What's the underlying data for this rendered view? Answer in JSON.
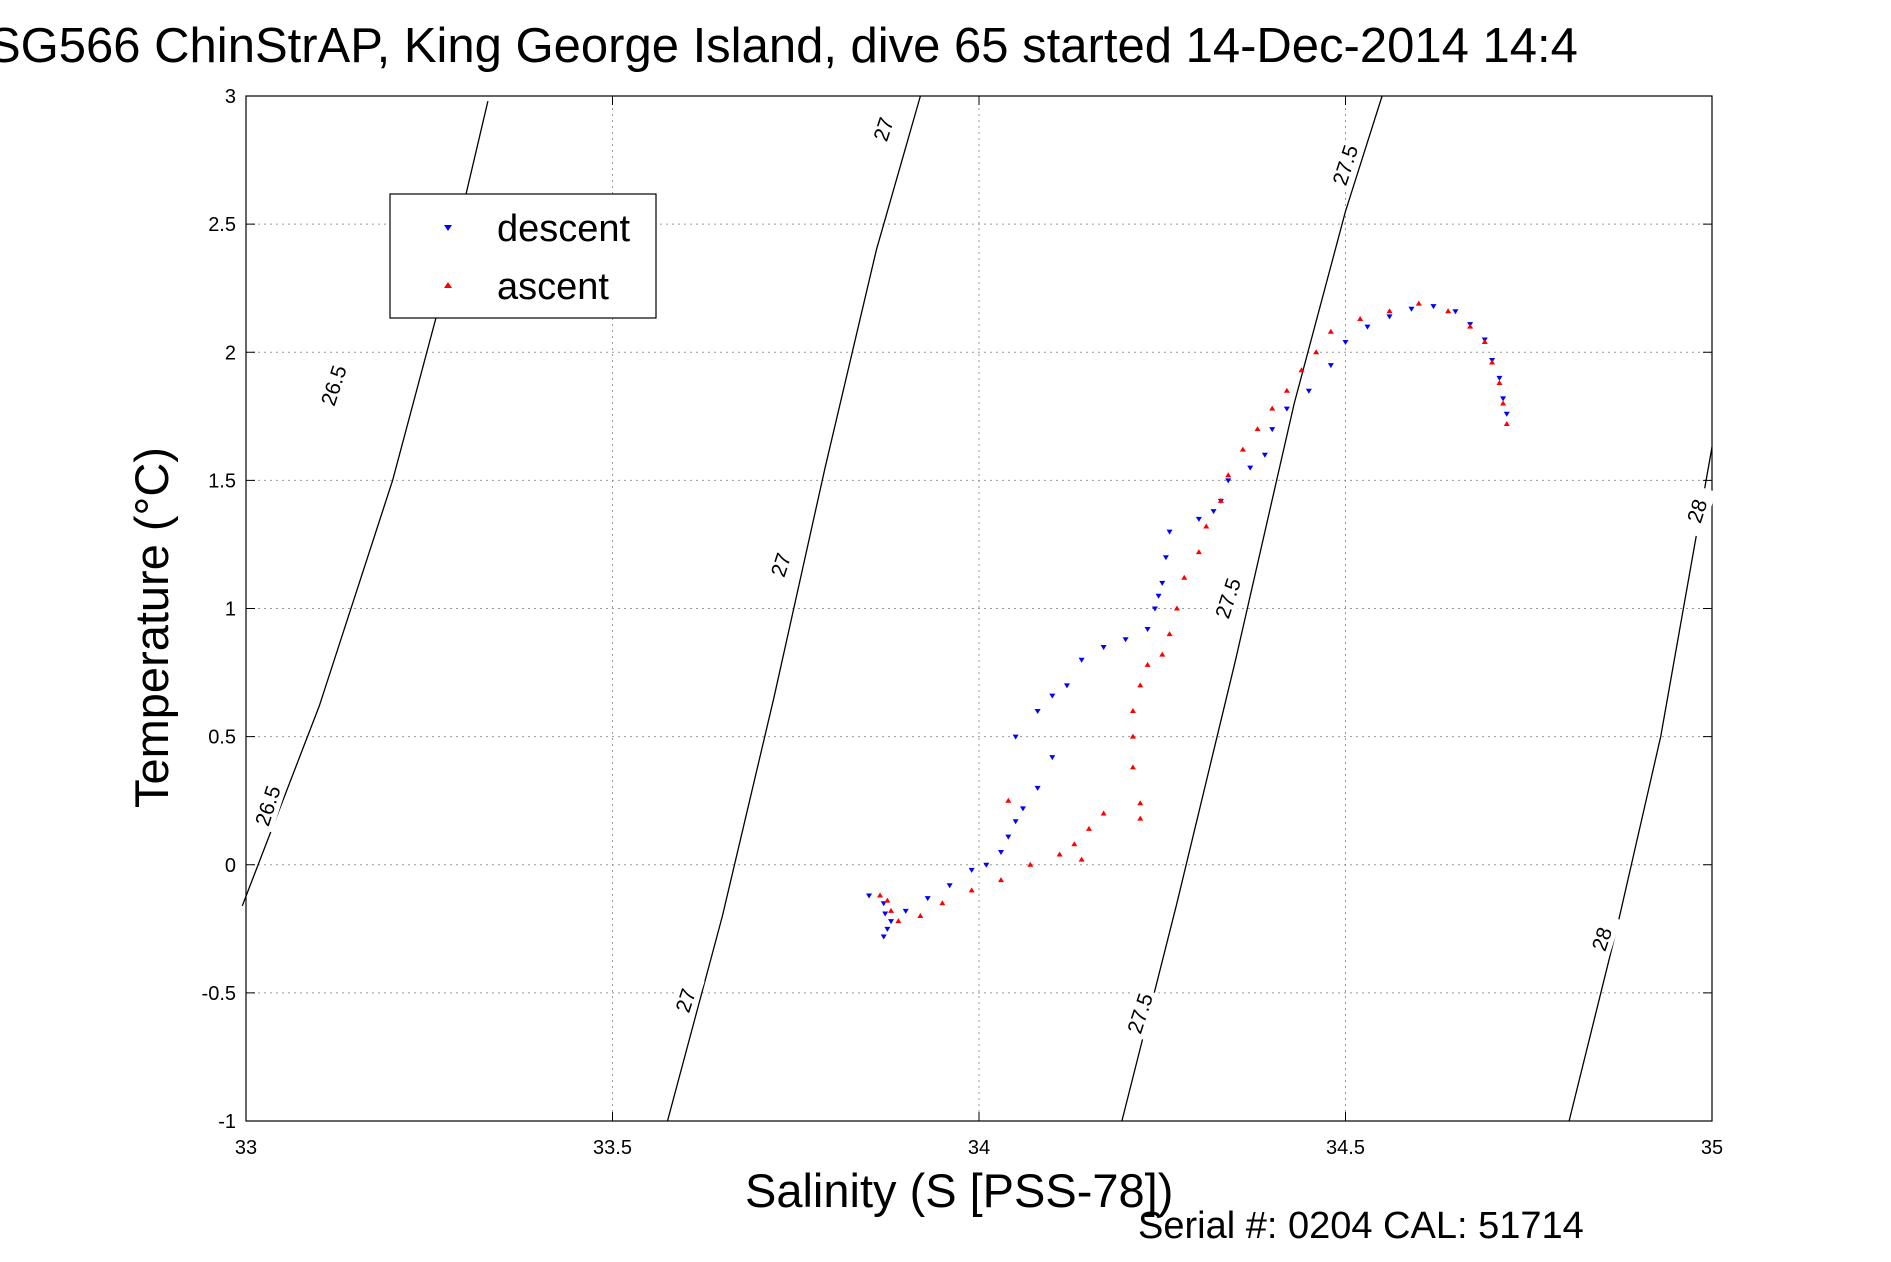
{
  "chart_data": {
    "type": "scatter",
    "title": "SG566 ChinStrAP, King George Island, dive 65 started 14-Dec-2014 14:4",
    "xlabel": "Salinity (S [PSS-78])",
    "ylabel": "Temperature (°C)",
    "xlim": [
      33,
      35
    ],
    "ylim": [
      -1,
      3
    ],
    "xticks": [
      33,
      33.5,
      34,
      34.5,
      35
    ],
    "xtick_labels": [
      "33",
      "33.5",
      "34",
      "34.5",
      "35"
    ],
    "yticks": [
      3,
      2.5,
      2,
      1.5,
      1,
      0.5,
      0,
      -0.5,
      -1
    ],
    "ytick_labels": [
      "3",
      "2.5",
      "2",
      "1.5",
      "1",
      "0.5",
      "0",
      "-0.5",
      "-1"
    ],
    "grid": true,
    "legend": "top-left",
    "colors": {
      "descent": "#0000ff",
      "ascent": "#ff0000",
      "contour": "#000000"
    },
    "series": [
      {
        "name": "descent",
        "marker": "down-triangle",
        "points": [
          [
            33.87,
            -0.28
          ],
          [
            33.875,
            -0.25
          ],
          [
            33.88,
            -0.22
          ],
          [
            33.872,
            -0.19
          ],
          [
            33.87,
            -0.15
          ],
          [
            33.85,
            -0.12
          ],
          [
            33.9,
            -0.18
          ],
          [
            33.93,
            -0.13
          ],
          [
            33.96,
            -0.08
          ],
          [
            33.99,
            -0.02
          ],
          [
            34.01,
            0.0
          ],
          [
            34.03,
            0.05
          ],
          [
            34.04,
            0.11
          ],
          [
            34.05,
            0.17
          ],
          [
            34.06,
            0.22
          ],
          [
            34.08,
            0.3
          ],
          [
            34.1,
            0.42
          ],
          [
            34.05,
            0.5
          ],
          [
            34.08,
            0.6
          ],
          [
            34.1,
            0.66
          ],
          [
            34.12,
            0.7
          ],
          [
            34.14,
            0.8
          ],
          [
            34.17,
            0.85
          ],
          [
            34.2,
            0.88
          ],
          [
            34.23,
            0.92
          ],
          [
            34.24,
            1.0
          ],
          [
            34.245,
            1.05
          ],
          [
            34.25,
            1.1
          ],
          [
            34.255,
            1.2
          ],
          [
            34.26,
            1.3
          ],
          [
            34.3,
            1.35
          ],
          [
            34.32,
            1.38
          ],
          [
            34.33,
            1.42
          ],
          [
            34.34,
            1.5
          ],
          [
            34.37,
            1.55
          ],
          [
            34.39,
            1.6
          ],
          [
            34.4,
            1.7
          ],
          [
            34.42,
            1.78
          ],
          [
            34.45,
            1.85
          ],
          [
            34.48,
            1.95
          ],
          [
            34.5,
            2.04
          ],
          [
            34.53,
            2.1
          ],
          [
            34.56,
            2.14
          ],
          [
            34.59,
            2.17
          ],
          [
            34.62,
            2.18
          ],
          [
            34.65,
            2.16
          ],
          [
            34.67,
            2.11
          ],
          [
            34.69,
            2.05
          ],
          [
            34.7,
            1.97
          ],
          [
            34.71,
            1.9
          ],
          [
            34.715,
            1.82
          ],
          [
            34.72,
            1.76
          ]
        ]
      },
      {
        "name": "ascent",
        "marker": "up-triangle",
        "points": [
          [
            34.72,
            1.72
          ],
          [
            34.715,
            1.8
          ],
          [
            34.71,
            1.88
          ],
          [
            34.7,
            1.96
          ],
          [
            34.69,
            2.04
          ],
          [
            34.67,
            2.1
          ],
          [
            34.64,
            2.16
          ],
          [
            34.6,
            2.19
          ],
          [
            34.56,
            2.16
          ],
          [
            34.52,
            2.13
          ],
          [
            34.48,
            2.08
          ],
          [
            34.46,
            2.0
          ],
          [
            34.44,
            1.93
          ],
          [
            34.42,
            1.85
          ],
          [
            34.4,
            1.78
          ],
          [
            34.38,
            1.7
          ],
          [
            34.36,
            1.62
          ],
          [
            34.34,
            1.52
          ],
          [
            34.33,
            1.42
          ],
          [
            34.31,
            1.32
          ],
          [
            34.3,
            1.22
          ],
          [
            34.28,
            1.12
          ],
          [
            34.27,
            1.0
          ],
          [
            34.26,
            0.9
          ],
          [
            34.25,
            0.82
          ],
          [
            34.23,
            0.78
          ],
          [
            34.22,
            0.7
          ],
          [
            34.21,
            0.6
          ],
          [
            34.21,
            0.5
          ],
          [
            34.21,
            0.38
          ],
          [
            34.22,
            0.24
          ],
          [
            34.22,
            0.18
          ],
          [
            34.17,
            0.2
          ],
          [
            34.15,
            0.14
          ],
          [
            34.13,
            0.08
          ],
          [
            34.11,
            0.04
          ],
          [
            34.07,
            0.0
          ],
          [
            34.03,
            -0.06
          ],
          [
            33.99,
            -0.1
          ],
          [
            33.95,
            -0.15
          ],
          [
            33.92,
            -0.2
          ],
          [
            33.89,
            -0.22
          ],
          [
            33.88,
            -0.18
          ],
          [
            33.875,
            -0.14
          ],
          [
            33.865,
            -0.12
          ],
          [
            34.04,
            0.25
          ],
          [
            34.14,
            0.02
          ]
        ]
      }
    ],
    "isopycnals": [
      {
        "label": "26.5",
        "points": [
          [
            32.995,
            -0.16
          ],
          [
            33.1,
            0.62
          ],
          [
            33.2,
            1.5
          ],
          [
            33.27,
            2.25
          ],
          [
            33.33,
            2.98
          ]
        ]
      },
      {
        "label": "27",
        "points": [
          [
            33.575,
            -1.0
          ],
          [
            33.65,
            -0.2
          ],
          [
            33.72,
            0.65
          ],
          [
            33.79,
            1.55
          ],
          [
            33.86,
            2.4
          ],
          [
            33.92,
            3.0
          ]
        ]
      },
      {
        "label": "27.5",
        "points": [
          [
            34.195,
            -1.0
          ],
          [
            34.27,
            -0.15
          ],
          [
            34.35,
            0.8
          ],
          [
            34.43,
            1.8
          ],
          [
            34.5,
            2.55
          ],
          [
            34.55,
            3.0
          ]
        ]
      },
      {
        "label": "28",
        "points": [
          [
            34.805,
            -1.0
          ],
          [
            34.87,
            -0.25
          ],
          [
            34.93,
            0.5
          ],
          [
            35.0,
            1.63
          ]
        ]
      }
    ],
    "contour_labels": [
      {
        "text": "26.5",
        "x": 33.12,
        "y": 1.87,
        "angle": -72
      },
      {
        "text": "26.5",
        "x": 33.03,
        "y": 0.23,
        "angle": -72
      },
      {
        "text": "27",
        "x": 33.87,
        "y": 2.87,
        "angle": -72
      },
      {
        "text": "27",
        "x": 33.73,
        "y": 1.17,
        "angle": -72
      },
      {
        "text": "27",
        "x": 33.6,
        "y": -0.53,
        "angle": -72
      },
      {
        "text": "27.5",
        "x": 34.5,
        "y": 2.73,
        "angle": -72
      },
      {
        "text": "27.5",
        "x": 34.34,
        "y": 1.04,
        "angle": -72
      },
      {
        "text": "27.5",
        "x": 34.22,
        "y": -0.58,
        "angle": -72
      },
      {
        "text": "28",
        "x": 34.98,
        "y": 1.38,
        "angle": -72
      },
      {
        "text": "28",
        "x": 34.85,
        "y": -0.29,
        "angle": -72
      }
    ]
  },
  "footer": {
    "serial_text": "Serial #: 0204  CAL: 51714"
  }
}
